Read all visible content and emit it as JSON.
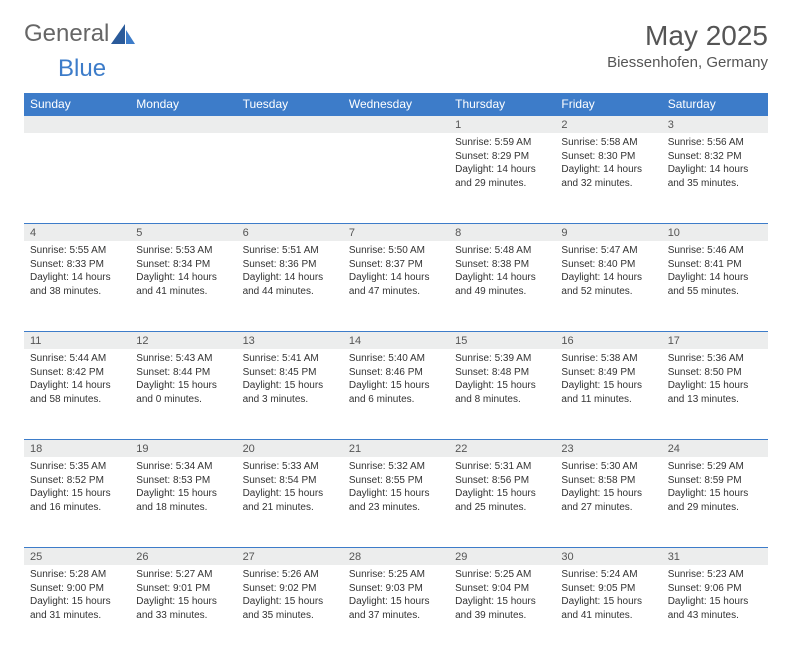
{
  "logo": {
    "general": "General",
    "blue": "Blue"
  },
  "title": "May 2025",
  "location": "Biessenhofen, Germany",
  "colors": {
    "header_bg": "#3d7cc9",
    "header_text": "#ffffff",
    "daynum_bg": "#eceded",
    "daynum_border": "#3d7cc9",
    "text": "#333333",
    "title_text": "#555555"
  },
  "weekdays": [
    "Sunday",
    "Monday",
    "Tuesday",
    "Wednesday",
    "Thursday",
    "Friday",
    "Saturday"
  ],
  "weeks": [
    [
      null,
      null,
      null,
      null,
      {
        "n": "1",
        "sr": "5:59 AM",
        "ss": "8:29 PM",
        "dl": "14 hours and 29 minutes."
      },
      {
        "n": "2",
        "sr": "5:58 AM",
        "ss": "8:30 PM",
        "dl": "14 hours and 32 minutes."
      },
      {
        "n": "3",
        "sr": "5:56 AM",
        "ss": "8:32 PM",
        "dl": "14 hours and 35 minutes."
      }
    ],
    [
      {
        "n": "4",
        "sr": "5:55 AM",
        "ss": "8:33 PM",
        "dl": "14 hours and 38 minutes."
      },
      {
        "n": "5",
        "sr": "5:53 AM",
        "ss": "8:34 PM",
        "dl": "14 hours and 41 minutes."
      },
      {
        "n": "6",
        "sr": "5:51 AM",
        "ss": "8:36 PM",
        "dl": "14 hours and 44 minutes."
      },
      {
        "n": "7",
        "sr": "5:50 AM",
        "ss": "8:37 PM",
        "dl": "14 hours and 47 minutes."
      },
      {
        "n": "8",
        "sr": "5:48 AM",
        "ss": "8:38 PM",
        "dl": "14 hours and 49 minutes."
      },
      {
        "n": "9",
        "sr": "5:47 AM",
        "ss": "8:40 PM",
        "dl": "14 hours and 52 minutes."
      },
      {
        "n": "10",
        "sr": "5:46 AM",
        "ss": "8:41 PM",
        "dl": "14 hours and 55 minutes."
      }
    ],
    [
      {
        "n": "11",
        "sr": "5:44 AM",
        "ss": "8:42 PM",
        "dl": "14 hours and 58 minutes."
      },
      {
        "n": "12",
        "sr": "5:43 AM",
        "ss": "8:44 PM",
        "dl": "15 hours and 0 minutes."
      },
      {
        "n": "13",
        "sr": "5:41 AM",
        "ss": "8:45 PM",
        "dl": "15 hours and 3 minutes."
      },
      {
        "n": "14",
        "sr": "5:40 AM",
        "ss": "8:46 PM",
        "dl": "15 hours and 6 minutes."
      },
      {
        "n": "15",
        "sr": "5:39 AM",
        "ss": "8:48 PM",
        "dl": "15 hours and 8 minutes."
      },
      {
        "n": "16",
        "sr": "5:38 AM",
        "ss": "8:49 PM",
        "dl": "15 hours and 11 minutes."
      },
      {
        "n": "17",
        "sr": "5:36 AM",
        "ss": "8:50 PM",
        "dl": "15 hours and 13 minutes."
      }
    ],
    [
      {
        "n": "18",
        "sr": "5:35 AM",
        "ss": "8:52 PM",
        "dl": "15 hours and 16 minutes."
      },
      {
        "n": "19",
        "sr": "5:34 AM",
        "ss": "8:53 PM",
        "dl": "15 hours and 18 minutes."
      },
      {
        "n": "20",
        "sr": "5:33 AM",
        "ss": "8:54 PM",
        "dl": "15 hours and 21 minutes."
      },
      {
        "n": "21",
        "sr": "5:32 AM",
        "ss": "8:55 PM",
        "dl": "15 hours and 23 minutes."
      },
      {
        "n": "22",
        "sr": "5:31 AM",
        "ss": "8:56 PM",
        "dl": "15 hours and 25 minutes."
      },
      {
        "n": "23",
        "sr": "5:30 AM",
        "ss": "8:58 PM",
        "dl": "15 hours and 27 minutes."
      },
      {
        "n": "24",
        "sr": "5:29 AM",
        "ss": "8:59 PM",
        "dl": "15 hours and 29 minutes."
      }
    ],
    [
      {
        "n": "25",
        "sr": "5:28 AM",
        "ss": "9:00 PM",
        "dl": "15 hours and 31 minutes."
      },
      {
        "n": "26",
        "sr": "5:27 AM",
        "ss": "9:01 PM",
        "dl": "15 hours and 33 minutes."
      },
      {
        "n": "27",
        "sr": "5:26 AM",
        "ss": "9:02 PM",
        "dl": "15 hours and 35 minutes."
      },
      {
        "n": "28",
        "sr": "5:25 AM",
        "ss": "9:03 PM",
        "dl": "15 hours and 37 minutes."
      },
      {
        "n": "29",
        "sr": "5:25 AM",
        "ss": "9:04 PM",
        "dl": "15 hours and 39 minutes."
      },
      {
        "n": "30",
        "sr": "5:24 AM",
        "ss": "9:05 PM",
        "dl": "15 hours and 41 minutes."
      },
      {
        "n": "31",
        "sr": "5:23 AM",
        "ss": "9:06 PM",
        "dl": "15 hours and 43 minutes."
      }
    ]
  ],
  "labels": {
    "sunrise": "Sunrise:",
    "sunset": "Sunset:",
    "daylight": "Daylight:"
  }
}
